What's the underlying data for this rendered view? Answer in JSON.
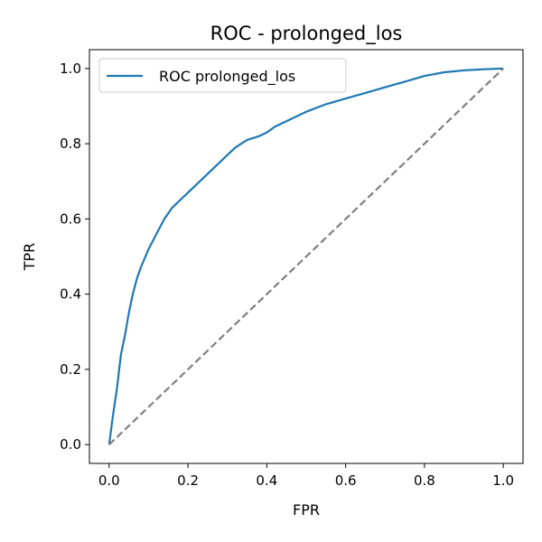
{
  "chart_data": {
    "type": "line",
    "title": "ROC - prolonged_los",
    "xlabel": "FPR",
    "ylabel": "TPR",
    "xlim": [
      -0.05,
      1.05
    ],
    "ylim": [
      -0.05,
      1.05
    ],
    "xticks": [
      0.0,
      0.2,
      0.4,
      0.6,
      0.8,
      1.0
    ],
    "yticks": [
      0.0,
      0.2,
      0.4,
      0.6,
      0.8,
      1.0
    ],
    "xtick_labels": [
      "0.0",
      "0.2",
      "0.4",
      "0.6",
      "0.8",
      "1.0"
    ],
    "ytick_labels": [
      "0.0",
      "0.2",
      "0.4",
      "0.6",
      "0.8",
      "1.0"
    ],
    "grid": false,
    "legend_position": "top-left",
    "series": [
      {
        "name": "ROC prolonged_los",
        "color": "#1f77b4",
        "style": "solid",
        "x": [
          0.0,
          0.01,
          0.02,
          0.03,
          0.04,
          0.05,
          0.06,
          0.07,
          0.08,
          0.1,
          0.12,
          0.14,
          0.16,
          0.18,
          0.2,
          0.22,
          0.25,
          0.28,
          0.3,
          0.32,
          0.35,
          0.38,
          0.4,
          0.42,
          0.45,
          0.5,
          0.55,
          0.6,
          0.65,
          0.7,
          0.75,
          0.8,
          0.85,
          0.9,
          0.95,
          1.0
        ],
        "y": [
          0.0,
          0.08,
          0.15,
          0.24,
          0.29,
          0.35,
          0.4,
          0.44,
          0.47,
          0.52,
          0.56,
          0.6,
          0.63,
          0.65,
          0.67,
          0.69,
          0.72,
          0.75,
          0.77,
          0.79,
          0.81,
          0.82,
          0.83,
          0.845,
          0.86,
          0.885,
          0.905,
          0.92,
          0.935,
          0.95,
          0.965,
          0.98,
          0.99,
          0.995,
          0.998,
          1.0
        ]
      },
      {
        "name": "",
        "color": "#7f7f7f",
        "style": "dashed",
        "x": [
          0.0,
          1.0
        ],
        "y": [
          0.0,
          1.0
        ]
      }
    ],
    "legend": [
      {
        "label": "ROC prolonged_los",
        "color": "#1f77b4"
      }
    ]
  }
}
